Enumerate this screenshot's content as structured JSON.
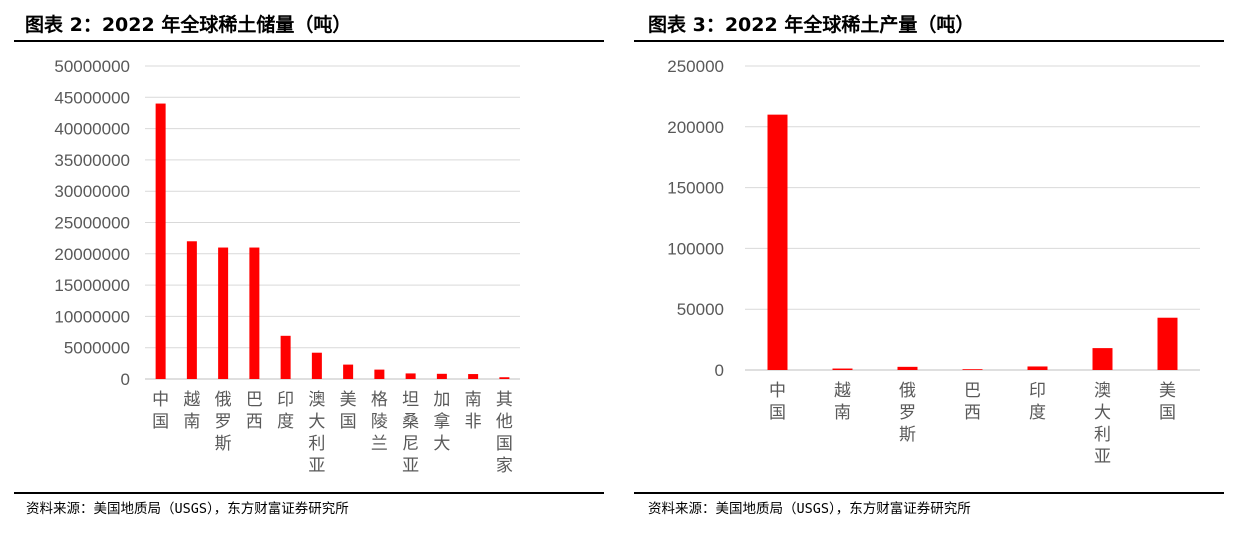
{
  "colors": {
    "bar": "#ff0000",
    "grid": "#d9d9d9",
    "tick_text": "#595959",
    "rule": "#000000"
  },
  "left": {
    "title": "图表 2：2022 年全球稀土储量（吨）",
    "source": "资料来源：美国地质局（USGS），东方财富证券研究所"
  },
  "right": {
    "title": "图表 3：2022 年全球稀土产量（吨）",
    "source": "资料来源：美国地质局（USGS），东方财富证券研究所"
  },
  "chart_data": [
    {
      "type": "bar",
      "title": "",
      "xlabel": "",
      "ylabel": "",
      "ylim": [
        0,
        50000000
      ],
      "yticks": [
        "0",
        "5000000",
        "10000000",
        "15000000",
        "20000000",
        "25000000",
        "30000000",
        "35000000",
        "40000000",
        "45000000",
        "50000000"
      ],
      "grid": true,
      "categories": [
        "中国",
        "越南",
        "俄罗斯",
        "巴西",
        "印度",
        "澳大利亚",
        "美国",
        "格陵兰",
        "坦桑尼亚",
        "加拿大",
        "南非",
        "其他国家"
      ],
      "values": [
        44000000,
        22000000,
        21000000,
        21000000,
        6900000,
        4200000,
        2300000,
        1500000,
        890000,
        830000,
        790000,
        280000
      ]
    },
    {
      "type": "bar",
      "title": "",
      "xlabel": "",
      "ylabel": "",
      "ylim": [
        0,
        250000
      ],
      "yticks": [
        "0",
        "50000",
        "100000",
        "150000",
        "200000",
        "250000"
      ],
      "grid": true,
      "categories": [
        "中国",
        "越南",
        "俄罗斯",
        "巴西",
        "印度",
        "澳大利亚",
        "美国"
      ],
      "values": [
        210000,
        1200,
        2600,
        80,
        2900,
        18000,
        43000
      ]
    }
  ]
}
